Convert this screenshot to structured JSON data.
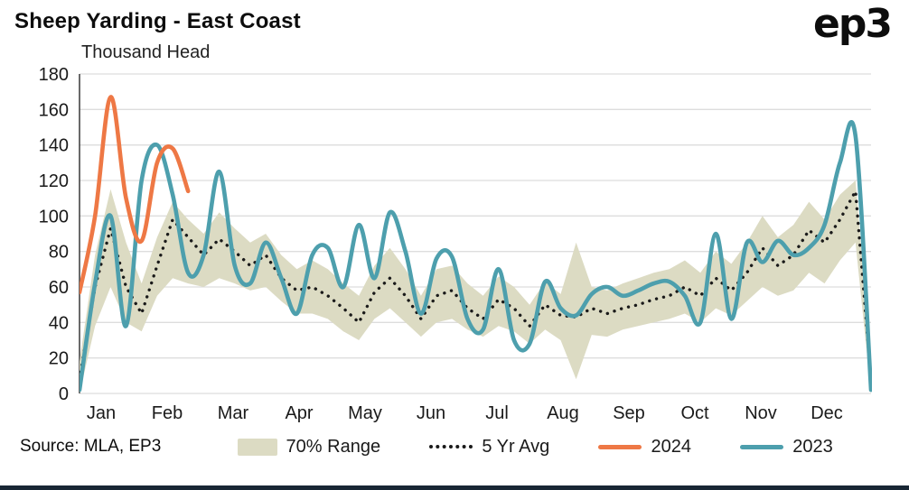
{
  "branding": {
    "logo_text": "ep3"
  },
  "chart_data": {
    "type": "line",
    "title": "Sheep Yarding - East Coast",
    "subtitle": "Thousand Head",
    "source": "Source: MLA, EP3",
    "grid": "horizontal",
    "legend_position": "bottom",
    "x_axis": {
      "unit": "weeks",
      "tick_labels": [
        "Jan",
        "Feb",
        "Mar",
        "Apr",
        "May",
        "Jun",
        "Jul",
        "Aug",
        "Sep",
        "Oct",
        "Nov",
        "Dec"
      ]
    },
    "y_axis": {
      "range": [
        0,
        180
      ],
      "ticks": [
        0,
        20,
        40,
        60,
        80,
        100,
        120,
        140,
        160,
        180
      ]
    },
    "colors": {
      "band": "#dcdbc3",
      "avg": "#1a1a1a",
      "y2024": "#ee7845",
      "y2023": "#4d9fad",
      "gridline": "#dddddd",
      "axis": "#444444"
    },
    "band": {
      "name": "70% Range",
      "lower": [
        0,
        38,
        60,
        40,
        35,
        55,
        65,
        62,
        60,
        65,
        62,
        58,
        60,
        52,
        45,
        45,
        42,
        35,
        30,
        42,
        48,
        40,
        32,
        40,
        42,
        36,
        32,
        38,
        35,
        28,
        36,
        30,
        8,
        33,
        32,
        36,
        38,
        40,
        42,
        45,
        40,
        48,
        44,
        52,
        60,
        55,
        58,
        68,
        62,
        75,
        85,
        0
      ],
      "upper": [
        18,
        78,
        115,
        85,
        62,
        88,
        108,
        98,
        90,
        102,
        93,
        85,
        90,
        78,
        70,
        75,
        70,
        62,
        55,
        72,
        82,
        70,
        55,
        70,
        72,
        62,
        55,
        66,
        60,
        50,
        63,
        56,
        85,
        60,
        58,
        62,
        65,
        68,
        70,
        75,
        68,
        80,
        73,
        85,
        100,
        88,
        95,
        108,
        98,
        112,
        120,
        15
      ]
    },
    "series": [
      {
        "name": "5 Yr Avg",
        "style": "dotted",
        "color": "#1a1a1a",
        "values": [
          8,
          60,
          93,
          60,
          45,
          72,
          98,
          88,
          78,
          87,
          80,
          72,
          78,
          65,
          58,
          60,
          55,
          48,
          40,
          57,
          65,
          55,
          42,
          55,
          58,
          48,
          42,
          53,
          48,
          38,
          50,
          44,
          43,
          48,
          45,
          48,
          50,
          53,
          55,
          60,
          55,
          65,
          58,
          68,
          82,
          72,
          78,
          92,
          85,
          98,
          114,
          8
        ]
      },
      {
        "name": "2023",
        "style": "solid",
        "color": "#4d9fad",
        "values": [
          2,
          62,
          100,
          38,
          120,
          140,
          112,
          68,
          78,
          125,
          72,
          62,
          85,
          65,
          45,
          78,
          82,
          60,
          95,
          65,
          102,
          80,
          45,
          76,
          77,
          42,
          36,
          70,
          30,
          28,
          63,
          48,
          44,
          56,
          60,
          55,
          58,
          62,
          63,
          55,
          40,
          90,
          42,
          85,
          74,
          86,
          78,
          82,
          95,
          130,
          145,
          2
        ]
      },
      {
        "name": "2024",
        "style": "solid",
        "color": "#ee7845",
        "values": [
          57,
          100,
          167,
          110,
          86,
          130,
          138,
          114
        ]
      }
    ],
    "legend": [
      {
        "label": "70% Range",
        "type": "band",
        "color": "#dcdbc3"
      },
      {
        "label": "5 Yr Avg",
        "type": "dotted",
        "color": "#1a1a1a"
      },
      {
        "label": "2024",
        "type": "line",
        "color": "#ee7845"
      },
      {
        "label": "2023",
        "type": "line",
        "color": "#4d9fad"
      }
    ]
  }
}
